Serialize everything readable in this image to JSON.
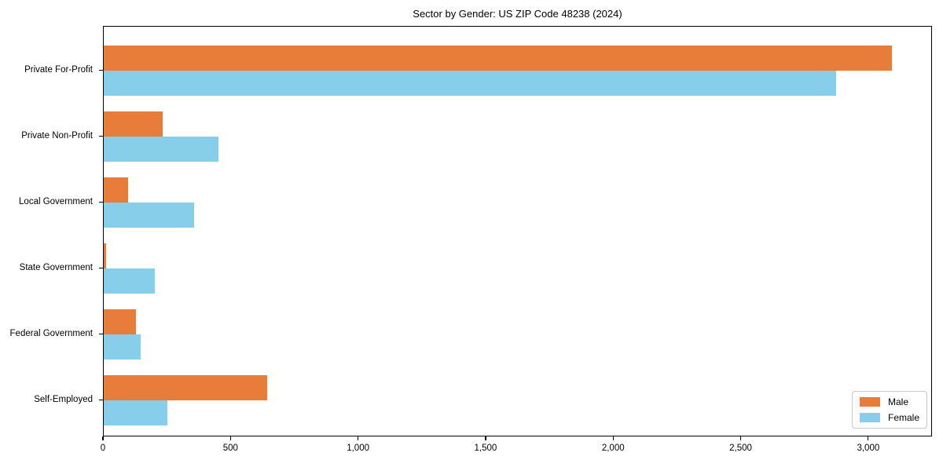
{
  "title": "Sector by Gender: US ZIP Code 48238 (2024)",
  "chart_data": {
    "type": "bar",
    "orientation": "horizontal",
    "title": "Sector by Gender: US ZIP Code 48238 (2024)",
    "categories": [
      "Private For-Profit",
      "Private Non-Profit",
      "Local Government",
      "State Government",
      "Federal Government",
      "Self-Employed"
    ],
    "series": [
      {
        "name": "Male",
        "color": "#e87d3b",
        "values": [
          3090,
          230,
          95,
          10,
          125,
          640
        ]
      },
      {
        "name": "Female",
        "color": "#87ceeb",
        "values": [
          2870,
          450,
          355,
          200,
          145,
          250
        ]
      }
    ],
    "xlim": [
      0,
      3250
    ],
    "xticks": [
      0,
      500,
      1000,
      1500,
      2000,
      2500,
      3000
    ],
    "xtick_labels": [
      "0",
      "500",
      "1,000",
      "1,500",
      "2,000",
      "2,500",
      "3,000"
    ],
    "grid": false,
    "legend_position": "lower right",
    "axis_color": "#000000"
  }
}
